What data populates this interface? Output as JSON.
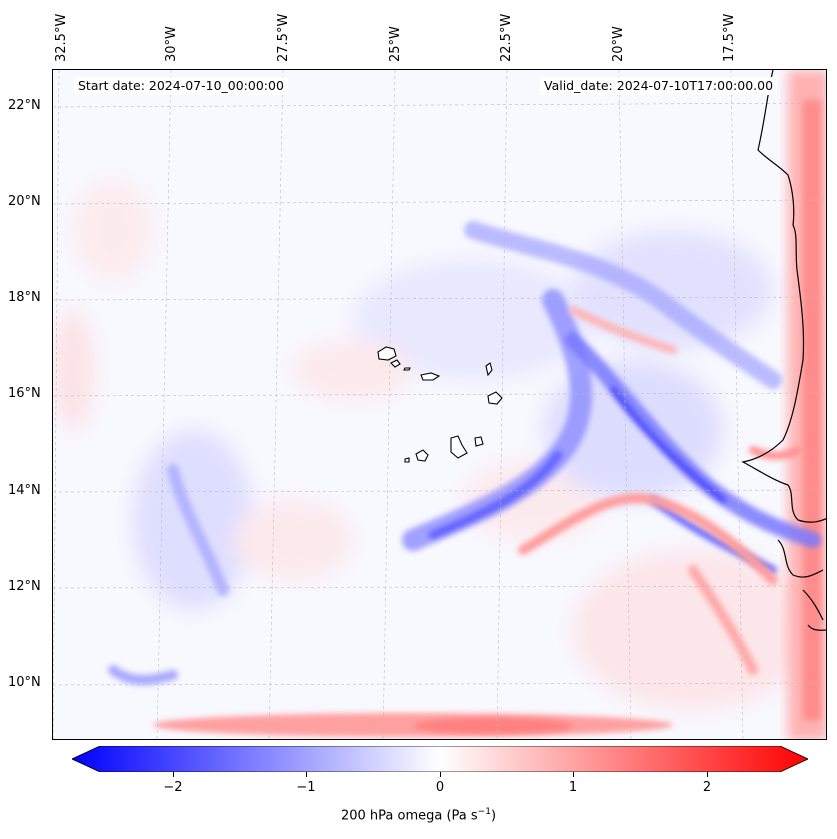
{
  "map": {
    "lon_labels": [
      "32.5°W",
      "30°W",
      "27.5°W",
      "25°W",
      "22.5°W",
      "20°W",
      "17.5°W"
    ],
    "lat_labels": [
      "22°N",
      "20°N",
      "18°N",
      "16°N",
      "14°N",
      "12°N",
      "10°N"
    ],
    "start_date": "Start date: 2024-07-10_00:00:00",
    "valid_date": "Valid_date: 2024-07-10T17:00:00.00",
    "extent": {
      "lon": [
        -32.5,
        -16.0
      ],
      "lat": [
        9.0,
        22.5
      ]
    },
    "field": "200 hPa omega",
    "units": "Pa s⁻¹"
  },
  "colorbar": {
    "ticks": [
      "−2",
      "−1",
      "0",
      "1",
      "2"
    ],
    "tick_values": [
      -2,
      -1,
      0,
      1,
      2
    ],
    "range": [
      -2.6,
      2.6
    ],
    "label_main": "200 hPa omega (Pa s",
    "label_exp": "−1",
    "label_end": ")",
    "colormap": "bwr",
    "color_min": "#0000ff",
    "color_mid": "#ffffff",
    "color_max": "#ff0000"
  }
}
